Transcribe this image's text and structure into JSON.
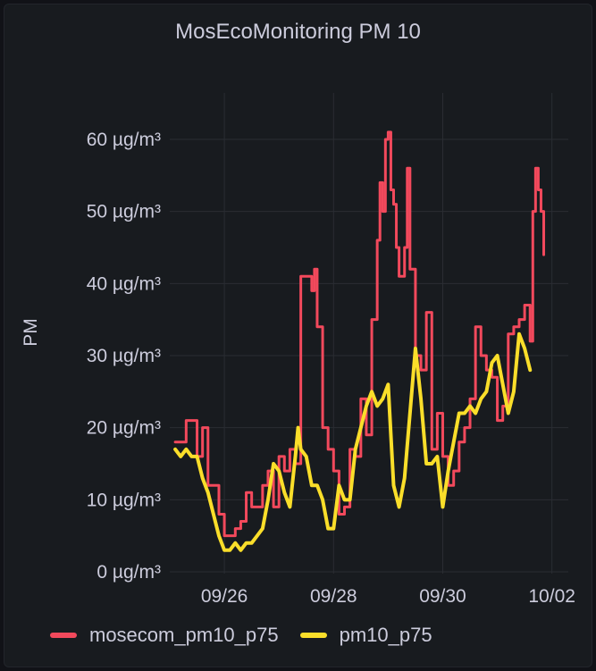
{
  "panel": {
    "title": "MosEcoMonitoring PM 10"
  },
  "chart_data": {
    "type": "line",
    "title": "MosEcoMonitoring PM 10",
    "ylabel": "PM",
    "y_unit": "µg/m³",
    "ylim": [
      0,
      60
    ],
    "y_ticks": [
      "0 µg/m³",
      "10 µg/m³",
      "20 µg/m³",
      "30 µg/m³",
      "40 µg/m³",
      "50 µg/m³",
      "60 µg/m³"
    ],
    "y_tick_values": [
      0,
      10,
      20,
      30,
      40,
      50,
      60
    ],
    "x_ticks": [
      "09/26",
      "09/28",
      "09/30",
      "10/02"
    ],
    "x_tick_values": [
      1,
      3,
      5,
      7
    ],
    "xlim": [
      0,
      7.3
    ],
    "grid": true,
    "legend_position": "bottom-left",
    "series": [
      {
        "name": "mosecom_pm10_p75",
        "color": "#f2495c",
        "points": [
          [
            0.1,
            18
          ],
          [
            0.2,
            18
          ],
          [
            0.3,
            21
          ],
          [
            0.4,
            21
          ],
          [
            0.5,
            16
          ],
          [
            0.6,
            20
          ],
          [
            0.7,
            12
          ],
          [
            0.8,
            12
          ],
          [
            0.9,
            8
          ],
          [
            1.0,
            5
          ],
          [
            1.1,
            5
          ],
          [
            1.2,
            6
          ],
          [
            1.3,
            7
          ],
          [
            1.4,
            11
          ],
          [
            1.5,
            9
          ],
          [
            1.6,
            9
          ],
          [
            1.7,
            12
          ],
          [
            1.8,
            14
          ],
          [
            1.9,
            9
          ],
          [
            2.0,
            16
          ],
          [
            2.1,
            14
          ],
          [
            2.2,
            17
          ],
          [
            2.3,
            15
          ],
          [
            2.4,
            41
          ],
          [
            2.5,
            41
          ],
          [
            2.6,
            39
          ],
          [
            2.65,
            42
          ],
          [
            2.7,
            34
          ],
          [
            2.8,
            20
          ],
          [
            2.9,
            17
          ],
          [
            3.0,
            14
          ],
          [
            3.1,
            8
          ],
          [
            3.2,
            9
          ],
          [
            3.3,
            17
          ],
          [
            3.4,
            16
          ],
          [
            3.5,
            24
          ],
          [
            3.6,
            19
          ],
          [
            3.7,
            35
          ],
          [
            3.8,
            46
          ],
          [
            3.85,
            54
          ],
          [
            3.9,
            50
          ],
          [
            3.95,
            60
          ],
          [
            4.0,
            61
          ],
          [
            4.05,
            53
          ],
          [
            4.1,
            51
          ],
          [
            4.15,
            45
          ],
          [
            4.2,
            41
          ],
          [
            4.3,
            45
          ],
          [
            4.35,
            56
          ],
          [
            4.4,
            42
          ],
          [
            4.5,
            30
          ],
          [
            4.6,
            28
          ],
          [
            4.7,
            36
          ],
          [
            4.8,
            17
          ],
          [
            4.9,
            22
          ],
          [
            5.0,
            16
          ],
          [
            5.1,
            12
          ],
          [
            5.2,
            14
          ],
          [
            5.3,
            18
          ],
          [
            5.4,
            20
          ],
          [
            5.5,
            24
          ],
          [
            5.6,
            34
          ],
          [
            5.7,
            30
          ],
          [
            5.8,
            28
          ],
          [
            5.9,
            27
          ],
          [
            6.0,
            21
          ],
          [
            6.1,
            23
          ],
          [
            6.2,
            33
          ],
          [
            6.3,
            34
          ],
          [
            6.4,
            35
          ],
          [
            6.5,
            37
          ],
          [
            6.6,
            32
          ],
          [
            6.65,
            50
          ],
          [
            6.7,
            56
          ],
          [
            6.75,
            53
          ],
          [
            6.8,
            50
          ],
          [
            6.85,
            44
          ]
        ]
      },
      {
        "name": "pm10_p75",
        "color": "#fade2a",
        "points": [
          [
            0.1,
            17
          ],
          [
            0.2,
            16
          ],
          [
            0.3,
            17
          ],
          [
            0.4,
            16
          ],
          [
            0.5,
            16
          ],
          [
            0.6,
            13
          ],
          [
            0.7,
            11
          ],
          [
            0.8,
            8
          ],
          [
            0.9,
            5
          ],
          [
            1.0,
            3
          ],
          [
            1.1,
            3
          ],
          [
            1.2,
            4
          ],
          [
            1.3,
            3
          ],
          [
            1.4,
            4
          ],
          [
            1.5,
            4
          ],
          [
            1.6,
            5
          ],
          [
            1.7,
            6
          ],
          [
            1.8,
            10
          ],
          [
            1.9,
            15
          ],
          [
            2.0,
            14
          ],
          [
            2.1,
            11
          ],
          [
            2.2,
            9
          ],
          [
            2.3,
            16
          ],
          [
            2.35,
            20
          ],
          [
            2.4,
            17
          ],
          [
            2.5,
            16
          ],
          [
            2.6,
            12
          ],
          [
            2.7,
            12
          ],
          [
            2.8,
            10
          ],
          [
            2.9,
            6
          ],
          [
            3.0,
            6
          ],
          [
            3.1,
            12
          ],
          [
            3.2,
            10
          ],
          [
            3.3,
            10
          ],
          [
            3.4,
            17
          ],
          [
            3.5,
            20
          ],
          [
            3.6,
            23
          ],
          [
            3.7,
            25
          ],
          [
            3.8,
            23
          ],
          [
            3.9,
            24
          ],
          [
            4.0,
            26
          ],
          [
            4.1,
            12
          ],
          [
            4.2,
            9
          ],
          [
            4.3,
            13
          ],
          [
            4.4,
            22
          ],
          [
            4.5,
            31
          ],
          [
            4.6,
            24
          ],
          [
            4.7,
            15
          ],
          [
            4.8,
            15
          ],
          [
            4.9,
            16
          ],
          [
            5.0,
            9
          ],
          [
            5.1,
            14
          ],
          [
            5.2,
            18
          ],
          [
            5.3,
            22
          ],
          [
            5.4,
            22
          ],
          [
            5.5,
            23
          ],
          [
            5.6,
            22
          ],
          [
            5.7,
            24
          ],
          [
            5.8,
            25
          ],
          [
            5.9,
            29
          ],
          [
            6.0,
            30
          ],
          [
            6.1,
            26
          ],
          [
            6.2,
            22
          ],
          [
            6.3,
            25
          ],
          [
            6.4,
            33
          ],
          [
            6.5,
            31
          ],
          [
            6.6,
            28
          ]
        ]
      }
    ]
  }
}
